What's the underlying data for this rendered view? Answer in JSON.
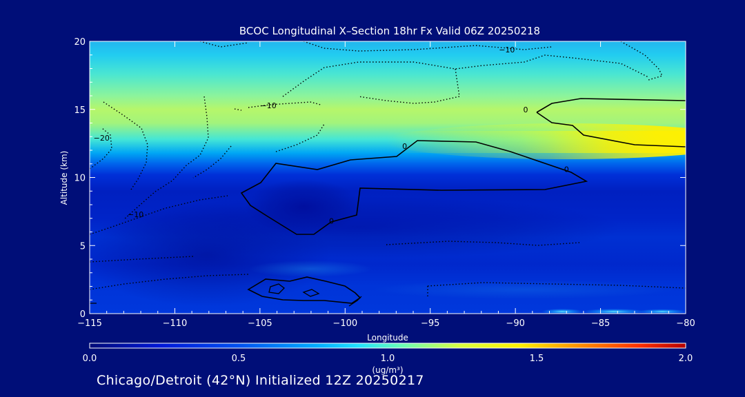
{
  "chart_data": {
    "type": "heatmap",
    "title": "BCOC Longitudinal X–Section 18hr  Fx Valid 06Z 20250218",
    "xlabel": "Longitude",
    "ylabel": "Altitude (km)",
    "xlim": [
      -115,
      -80
    ],
    "ylim": [
      0,
      20
    ],
    "x_ticks": [
      -115,
      -110,
      -105,
      -100,
      -95,
      -90,
      -85,
      -80
    ],
    "x_tick_labels": [
      "−115",
      "−110",
      "−105",
      "−100",
      "−95",
      "−90",
      "−85",
      "−80"
    ],
    "y_ticks": [
      0,
      5,
      10,
      15,
      20
    ],
    "y_tick_labels": [
      "0",
      "5",
      "10",
      "15",
      "20"
    ],
    "grid": false,
    "colorbar": {
      "ticks": [
        0.0,
        0.5,
        1.0,
        1.5,
        2.0
      ],
      "tick_labels": [
        "0.0",
        "0.5",
        "1.0",
        "1.5",
        "2.0"
      ],
      "units": "(ug/m³)",
      "range": [
        0,
        2
      ]
    },
    "contour_labels": [
      {
        "text": "−10",
        "lon": -90.5,
        "alt": 19.4
      },
      {
        "text": "−10",
        "lon": -104.5,
        "alt": 15.3
      },
      {
        "text": "−20",
        "lon": -114.3,
        "alt": 12.9
      },
      {
        "text": "−10",
        "lon": -112.3,
        "alt": 7.3
      },
      {
        "text": "0",
        "lon": -89.4,
        "alt": 15.0
      },
      {
        "text": "0",
        "lon": -96.5,
        "alt": 12.3
      },
      {
        "text": "0",
        "lon": -87.0,
        "alt": 10.6
      },
      {
        "text": "0",
        "lon": -100.8,
        "alt": 6.8
      }
    ]
  },
  "footer": {
    "caption": "Chicago/Detroit (42°N) Initialized 12Z 20250217"
  },
  "colors": {
    "background": "#000e78",
    "axes_text": "#ffffff",
    "contour_line": "#000000"
  }
}
